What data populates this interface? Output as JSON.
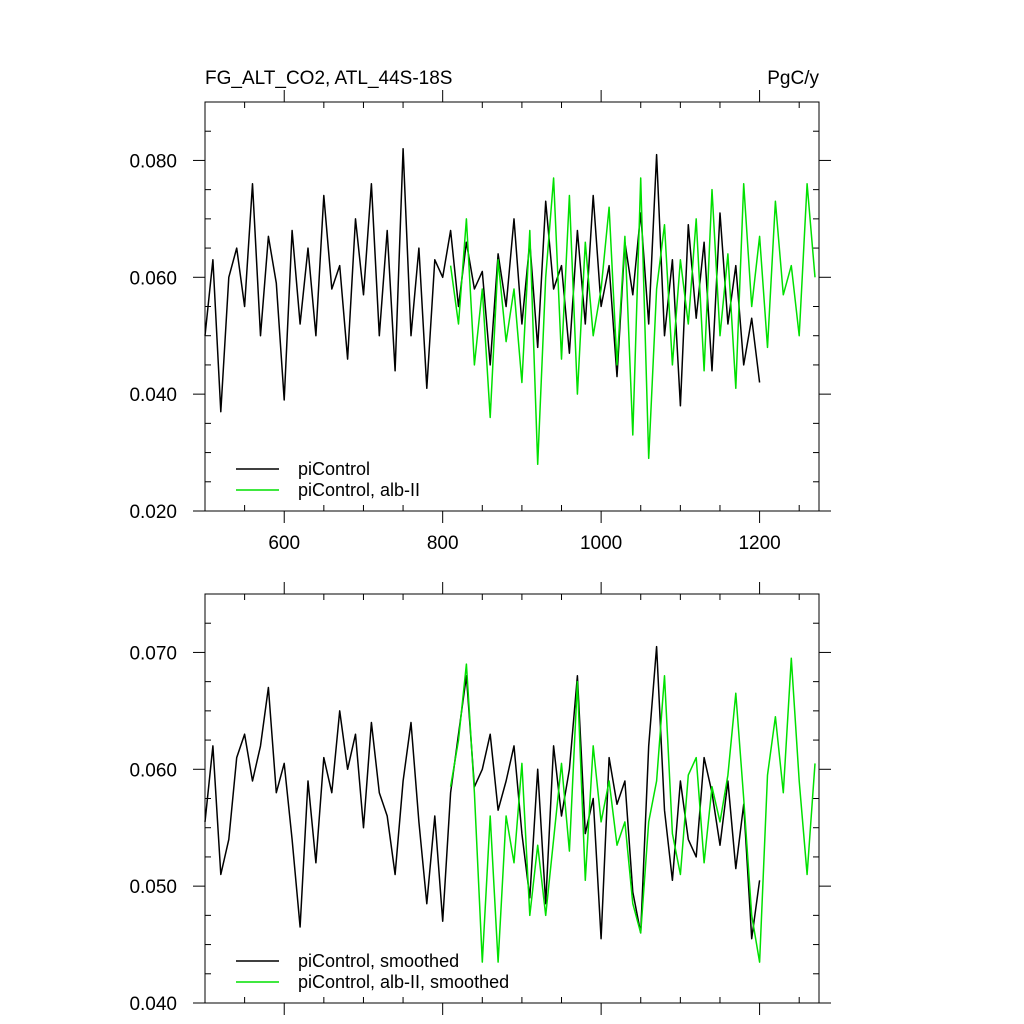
{
  "chart_data": [
    {
      "type": "line",
      "title": "FG_ALT_CO2, ATL_44S-18S",
      "units": "PgC/y",
      "xlim": [
        500,
        1275
      ],
      "ylim": [
        0.02,
        0.09
      ],
      "x_ticks": [
        600,
        800,
        1000,
        1200
      ],
      "x_tick_labels": [
        "600",
        "800",
        "1000",
        "1200"
      ],
      "y_ticks": [
        0.02,
        0.04,
        0.06,
        0.08
      ],
      "y_tick_labels": [
        "0.020",
        "0.040",
        "0.060",
        "0.080"
      ],
      "grid": false,
      "legend_position": "bottom-left",
      "series": [
        {
          "name": "piControl",
          "color": "#000000",
          "x": [
            500,
            510,
            520,
            530,
            540,
            550,
            560,
            570,
            580,
            590,
            600,
            610,
            620,
            630,
            640,
            650,
            660,
            670,
            680,
            690,
            700,
            710,
            720,
            730,
            740,
            750,
            760,
            770,
            780,
            790,
            800,
            810,
            820,
            830,
            840,
            850,
            860,
            870,
            880,
            890,
            900,
            910,
            920,
            930,
            940,
            950,
            960,
            970,
            980,
            990,
            1000,
            1010,
            1020,
            1030,
            1040,
            1050,
            1060,
            1070,
            1080,
            1090,
            1100,
            1110,
            1120,
            1130,
            1140,
            1150,
            1160,
            1170,
            1180,
            1190,
            1200
          ],
          "values": [
            0.05,
            0.063,
            0.037,
            0.06,
            0.065,
            0.055,
            0.076,
            0.05,
            0.067,
            0.059,
            0.039,
            0.068,
            0.052,
            0.065,
            0.05,
            0.074,
            0.058,
            0.062,
            0.046,
            0.07,
            0.057,
            0.076,
            0.05,
            0.068,
            0.044,
            0.082,
            0.05,
            0.065,
            0.041,
            0.063,
            0.06,
            0.068,
            0.055,
            0.066,
            0.058,
            0.061,
            0.045,
            0.064,
            0.055,
            0.07,
            0.052,
            0.066,
            0.048,
            0.073,
            0.058,
            0.062,
            0.047,
            0.068,
            0.052,
            0.074,
            0.055,
            0.062,
            0.043,
            0.066,
            0.057,
            0.071,
            0.052,
            0.081,
            0.05,
            0.063,
            0.038,
            0.069,
            0.053,
            0.066,
            0.044,
            0.071,
            0.052,
            0.062,
            0.045,
            0.053,
            0.042
          ]
        },
        {
          "name": "piControl, alb-II",
          "color": "#00e000",
          "x": [
            810,
            820,
            830,
            840,
            850,
            860,
            870,
            880,
            890,
            900,
            910,
            920,
            930,
            940,
            950,
            960,
            970,
            980,
            990,
            1000,
            1010,
            1020,
            1030,
            1040,
            1050,
            1060,
            1070,
            1080,
            1090,
            1100,
            1110,
            1120,
            1130,
            1140,
            1150,
            1160,
            1170,
            1180,
            1190,
            1200,
            1210,
            1220,
            1230,
            1240,
            1250,
            1260,
            1270
          ],
          "values": [
            0.062,
            0.052,
            0.07,
            0.045,
            0.058,
            0.036,
            0.063,
            0.049,
            0.058,
            0.042,
            0.068,
            0.028,
            0.06,
            0.077,
            0.046,
            0.074,
            0.04,
            0.066,
            0.05,
            0.058,
            0.072,
            0.045,
            0.067,
            0.033,
            0.077,
            0.029,
            0.058,
            0.069,
            0.045,
            0.063,
            0.052,
            0.07,
            0.044,
            0.075,
            0.05,
            0.064,
            0.041,
            0.076,
            0.055,
            0.067,
            0.048,
            0.073,
            0.057,
            0.062,
            0.05,
            0.076,
            0.06
          ]
        }
      ]
    },
    {
      "type": "line",
      "xlim": [
        500,
        1275
      ],
      "ylim": [
        0.04,
        0.075
      ],
      "x_ticks": [
        600,
        800,
        1000,
        1200
      ],
      "y_ticks": [
        0.04,
        0.05,
        0.06,
        0.07
      ],
      "y_tick_labels": [
        "0.040",
        "0.050",
        "0.060",
        "0.070"
      ],
      "grid": false,
      "legend_position": "bottom-left",
      "series": [
        {
          "name": "piControl, smoothed",
          "color": "#000000",
          "x": [
            500,
            510,
            520,
            530,
            540,
            550,
            560,
            570,
            580,
            590,
            600,
            610,
            620,
            630,
            640,
            650,
            660,
            670,
            680,
            690,
            700,
            710,
            720,
            730,
            740,
            750,
            760,
            770,
            780,
            790,
            800,
            810,
            820,
            830,
            840,
            850,
            860,
            870,
            880,
            890,
            900,
            910,
            920,
            930,
            940,
            950,
            960,
            970,
            980,
            990,
            1000,
            1010,
            1020,
            1030,
            1040,
            1050,
            1060,
            1070,
            1080,
            1090,
            1100,
            1110,
            1120,
            1130,
            1140,
            1150,
            1160,
            1170,
            1180,
            1190,
            1200
          ],
          "values": [
            0.0555,
            0.062,
            0.051,
            0.054,
            0.061,
            0.063,
            0.059,
            0.062,
            0.067,
            0.058,
            0.0605,
            0.054,
            0.0465,
            0.059,
            0.052,
            0.061,
            0.058,
            0.065,
            0.06,
            0.063,
            0.055,
            0.064,
            0.058,
            0.056,
            0.051,
            0.059,
            0.064,
            0.0555,
            0.0485,
            0.056,
            0.047,
            0.058,
            0.063,
            0.068,
            0.0585,
            0.06,
            0.063,
            0.0565,
            0.059,
            0.062,
            0.0545,
            0.049,
            0.06,
            0.0485,
            0.062,
            0.056,
            0.06,
            0.068,
            0.0545,
            0.0575,
            0.0455,
            0.061,
            0.057,
            0.059,
            0.0495,
            0.046,
            0.062,
            0.0705,
            0.0565,
            0.0505,
            0.059,
            0.054,
            0.0525,
            0.061,
            0.058,
            0.0535,
            0.059,
            0.0515,
            0.057,
            0.0455,
            0.0505
          ]
        },
        {
          "name": "piControl, alb-II, smoothed",
          "color": "#00e000",
          "x": [
            810,
            820,
            830,
            840,
            850,
            860,
            870,
            880,
            890,
            900,
            910,
            920,
            930,
            940,
            950,
            960,
            970,
            980,
            990,
            1000,
            1010,
            1020,
            1030,
            1040,
            1050,
            1060,
            1070,
            1080,
            1090,
            1100,
            1110,
            1120,
            1130,
            1140,
            1150,
            1160,
            1170,
            1180,
            1190,
            1200,
            1210,
            1220,
            1230,
            1240,
            1250,
            1260,
            1270
          ],
          "values": [
            0.0585,
            0.0625,
            0.069,
            0.058,
            0.0435,
            0.056,
            0.0435,
            0.056,
            0.052,
            0.0605,
            0.0475,
            0.0535,
            0.0475,
            0.054,
            0.0605,
            0.053,
            0.0675,
            0.0505,
            0.062,
            0.0555,
            0.059,
            0.0535,
            0.0555,
            0.0485,
            0.046,
            0.0555,
            0.059,
            0.068,
            0.0545,
            0.051,
            0.0595,
            0.061,
            0.052,
            0.0585,
            0.0555,
            0.0595,
            0.0665,
            0.0575,
            0.0475,
            0.0435,
            0.0595,
            0.0645,
            0.058,
            0.0695,
            0.059,
            0.051,
            0.0605
          ]
        }
      ]
    }
  ]
}
